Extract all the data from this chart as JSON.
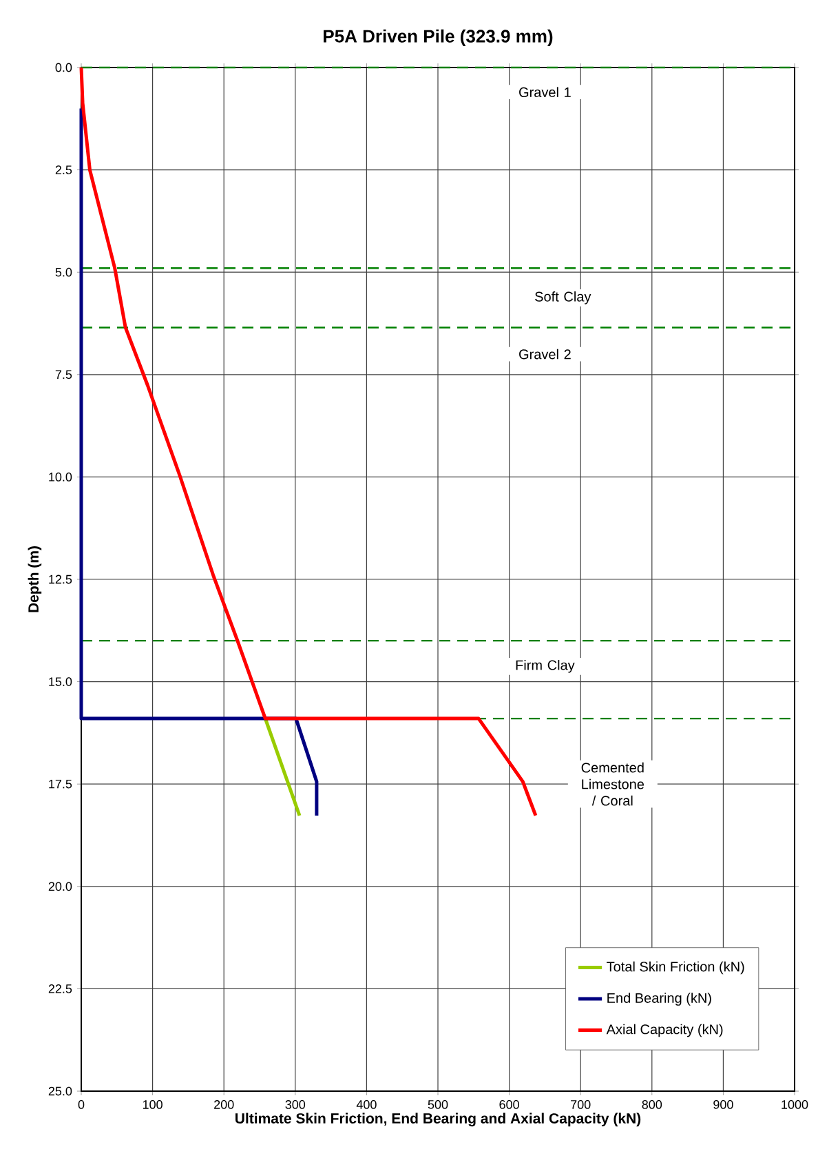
{
  "chart_data": {
    "type": "line",
    "title": "P5A Driven Pile (323.9 mm)",
    "xlabel": "Ultimate Skin Friction, End Bearing and Axial Capacity (kN)",
    "ylabel": "Depth (m)",
    "xlim": [
      0,
      1000
    ],
    "xticks": [
      0,
      100,
      200,
      300,
      400,
      500,
      600,
      700,
      800,
      900,
      1000
    ],
    "ylim": [
      25,
      0
    ],
    "yticks": [
      {
        "value": 0,
        "label": "0.0"
      },
      2.5,
      {
        "value": 5,
        "label": "5.0"
      },
      7.5,
      {
        "value": 10,
        "label": "10.0"
      },
      12.5,
      {
        "value": 15,
        "label": "15.0"
      },
      17.5,
      {
        "value": 20,
        "label": "20.0"
      },
      22.5,
      {
        "value": 25,
        "label": "25.0"
      }
    ],
    "grid": true,
    "legend": "bottom right",
    "line_style": "solid",
    "marker": "none",
    "series": [
      {
        "name": "Total Skin Friction (kN)",
        "color": "#99cc00",
        "x": [
          258,
          306
        ],
        "values": [
          15.9,
          18.27
        ]
      },
      {
        "name": "End Bearing (kN)",
        "color": "#000080",
        "x": [
          0,
          0,
          301,
          330,
          330
        ],
        "values": [
          1.0,
          15.9,
          15.9,
          17.44,
          18.27
        ]
      },
      {
        "name": "Axial Capacity (kN)",
        "color": "#ff0000",
        "x": [
          0,
          2,
          12,
          47,
          62,
          93,
          138,
          185,
          219,
          258,
          557,
          619,
          637
        ],
        "values": [
          0,
          0.87,
          2.5,
          4.9,
          6.35,
          7.76,
          9.96,
          12.4,
          14.0,
          15.9,
          15.9,
          17.44,
          18.27
        ]
      }
    ],
    "ref_lines": [
      {
        "axis": "y",
        "value": 0,
        "color": "#008000",
        "line_style": "dashed"
      },
      {
        "axis": "y",
        "value": 4.9,
        "color": "#008000",
        "line_style": "dashed"
      },
      {
        "axis": "y",
        "value": 6.35,
        "color": "#008000",
        "line_style": "dashed"
      },
      {
        "axis": "y",
        "value": 14.0,
        "color": "#008000",
        "line_style": "dashed"
      },
      {
        "axis": "y",
        "value": 15.9,
        "color": "#008000",
        "line_style": "dashed"
      }
    ],
    "annotations": [
      "Gravel 1",
      "Soft Clay",
      "Gravel 2",
      "Firm Clay",
      "Cemented Limestone / Coral"
    ]
  }
}
